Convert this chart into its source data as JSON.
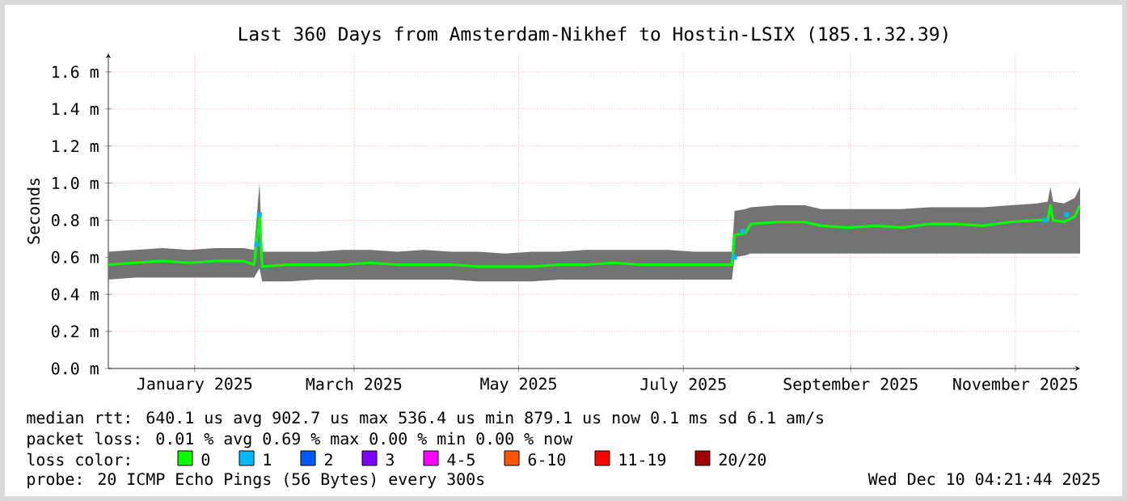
{
  "chart_data": {
    "type": "line",
    "title": "Last 360 Days from Amsterdam-Nikhef to Hostin-LSIX (185.1.32.39)",
    "ylabel": "Seconds",
    "legend_title": "loss color:",
    "xlim": [
      "2024-12-15",
      "2025-12-10"
    ],
    "xticks": [
      {
        "value": "2025-01-16",
        "label": "January 2025"
      },
      {
        "value": "2025-03-16",
        "label": "March 2025"
      },
      {
        "value": "2025-05-16",
        "label": "May 2025"
      },
      {
        "value": "2025-07-16",
        "label": "July 2025"
      },
      {
        "value": "2025-09-16",
        "label": "September 2025"
      },
      {
        "value": "2025-11-16",
        "label": "November 2025"
      }
    ],
    "ylim": [
      0,
      1.7
    ],
    "yticks": [
      {
        "value": 0,
        "label": "0.0 m"
      },
      {
        "value": 0.2,
        "label": "0.2 m"
      },
      {
        "value": 0.4,
        "label": "0.4 m"
      },
      {
        "value": 0.6,
        "label": "0.6 m"
      },
      {
        "value": 0.8,
        "label": "0.8 m"
      },
      {
        "value": 1.0,
        "label": "1.0 m"
      },
      {
        "value": 1.2,
        "label": "1.2 m"
      },
      {
        "value": 1.4,
        "label": "1.4 m"
      },
      {
        "value": 1.6,
        "label": "1.6 m"
      }
    ],
    "grid": true,
    "legend": "bottom",
    "x": [
      "2024-12-15",
      "2024-12-25",
      "2025-01-04",
      "2025-01-14",
      "2025-01-24",
      "2025-02-03",
      "2025-02-07",
      "2025-02-09",
      "2025-02-10",
      "2025-02-20",
      "2025-03-02",
      "2025-03-12",
      "2025-03-22",
      "2025-04-01",
      "2025-04-11",
      "2025-04-21",
      "2025-05-01",
      "2025-05-11",
      "2025-05-21",
      "2025-05-31",
      "2025-06-10",
      "2025-06-20",
      "2025-06-30",
      "2025-07-10",
      "2025-07-20",
      "2025-07-30",
      "2025-08-03",
      "2025-08-04",
      "2025-08-08",
      "2025-08-10",
      "2025-08-20",
      "2025-08-30",
      "2025-09-05",
      "2025-09-15",
      "2025-09-25",
      "2025-10-05",
      "2025-10-15",
      "2025-10-25",
      "2025-11-04",
      "2025-11-14",
      "2025-11-24",
      "2025-11-28",
      "2025-11-29",
      "2025-11-30",
      "2025-12-04",
      "2025-12-08",
      "2025-12-10"
    ],
    "series": [
      {
        "name": "0",
        "color": "#00ff00",
        "values": [
          0.56,
          0.57,
          0.58,
          0.57,
          0.58,
          0.58,
          0.56,
          0.82,
          0.55,
          0.56,
          0.56,
          0.56,
          0.57,
          0.56,
          0.56,
          0.56,
          0.55,
          0.55,
          0.55,
          0.56,
          0.56,
          0.57,
          0.56,
          0.56,
          0.56,
          0.56,
          0.56,
          0.72,
          0.73,
          0.78,
          0.79,
          0.79,
          0.77,
          0.76,
          0.77,
          0.76,
          0.78,
          0.78,
          0.77,
          0.79,
          0.8,
          0.8,
          0.88,
          0.8,
          0.79,
          0.82,
          0.88
        ],
        "lower": [
          0.48,
          0.49,
          0.49,
          0.49,
          0.49,
          0.49,
          0.49,
          0.54,
          0.47,
          0.47,
          0.48,
          0.48,
          0.48,
          0.48,
          0.48,
          0.48,
          0.47,
          0.47,
          0.47,
          0.48,
          0.48,
          0.48,
          0.48,
          0.48,
          0.48,
          0.48,
          0.48,
          0.6,
          0.61,
          0.62,
          0.62,
          0.62,
          0.62,
          0.62,
          0.62,
          0.62,
          0.62,
          0.62,
          0.62,
          0.62,
          0.62,
          0.62,
          0.62,
          0.62,
          0.62,
          0.62,
          0.62
        ],
        "upper": [
          0.63,
          0.64,
          0.65,
          0.64,
          0.65,
          0.65,
          0.64,
          1.0,
          0.63,
          0.63,
          0.63,
          0.64,
          0.64,
          0.63,
          0.64,
          0.63,
          0.63,
          0.62,
          0.63,
          0.63,
          0.64,
          0.64,
          0.64,
          0.64,
          0.63,
          0.63,
          0.63,
          0.85,
          0.86,
          0.87,
          0.88,
          0.88,
          0.86,
          0.86,
          0.86,
          0.86,
          0.87,
          0.87,
          0.87,
          0.88,
          0.89,
          0.9,
          0.98,
          0.9,
          0.89,
          0.92,
          0.98
        ]
      },
      {
        "name": "1",
        "color": "#00b8ff",
        "type": "scatter",
        "marker": "square",
        "x": [
          "2025-02-08",
          "2025-02-09",
          "2025-08-04",
          "2025-08-07",
          "2025-11-27",
          "2025-12-05"
        ],
        "values": [
          0.67,
          0.83,
          0.6,
          0.74,
          0.8,
          0.83
        ]
      },
      {
        "name": "2",
        "color": "#0059ff",
        "type": "scatter",
        "marker": "square",
        "values": [
          null,
          null,
          null,
          null,
          null,
          null,
          null,
          null,
          null,
          null,
          null,
          null,
          null,
          null,
          null,
          null,
          null,
          null,
          null,
          null,
          null,
          null,
          null,
          null,
          null,
          null,
          null,
          null,
          null,
          null,
          null,
          null,
          null,
          null,
          null,
          null,
          null,
          null,
          null,
          null,
          null,
          null,
          null,
          null,
          null,
          null,
          null
        ]
      },
      {
        "name": "3",
        "color": "#7e00ff",
        "type": "scatter",
        "marker": "square",
        "values": [
          null,
          null,
          null,
          null,
          null,
          null,
          null,
          null,
          null,
          null,
          null,
          null,
          null,
          null,
          null,
          null,
          null,
          null,
          null,
          null,
          null,
          null,
          null,
          null,
          null,
          null,
          null,
          null,
          null,
          null,
          null,
          null,
          null,
          null,
          null,
          null,
          null,
          null,
          null,
          null,
          null,
          null,
          null,
          null,
          null,
          null,
          null
        ]
      },
      {
        "name": "4-5",
        "color": "#ff00ff",
        "type": "scatter",
        "marker": "square",
        "values": [
          null,
          null,
          null,
          null,
          null,
          null,
          null,
          null,
          null,
          null,
          null,
          null,
          null,
          null,
          null,
          null,
          null,
          null,
          null,
          null,
          null,
          null,
          null,
          null,
          null,
          null,
          null,
          null,
          null,
          null,
          null,
          null,
          null,
          null,
          null,
          null,
          null,
          null,
          null,
          null,
          null,
          null,
          null,
          null,
          null,
          null,
          null
        ]
      },
      {
        "name": "6-10",
        "color": "#ff5500",
        "type": "scatter",
        "marker": "square",
        "values": [
          null,
          null,
          null,
          null,
          null,
          null,
          null,
          null,
          null,
          null,
          null,
          null,
          null,
          null,
          null,
          null,
          null,
          null,
          null,
          null,
          null,
          null,
          null,
          null,
          null,
          null,
          null,
          null,
          null,
          null,
          null,
          null,
          null,
          null,
          null,
          null,
          null,
          null,
          null,
          null,
          null,
          null,
          null,
          null,
          null,
          null,
          null
        ]
      },
      {
        "name": "11-19",
        "color": "#ff0000",
        "type": "scatter",
        "marker": "square",
        "values": [
          null,
          null,
          null,
          null,
          null,
          null,
          null,
          null,
          null,
          null,
          null,
          null,
          null,
          null,
          null,
          null,
          null,
          null,
          null,
          null,
          null,
          null,
          null,
          null,
          null,
          null,
          null,
          null,
          null,
          null,
          null,
          null,
          null,
          null,
          null,
          null,
          null,
          null,
          null,
          null,
          null,
          null,
          null,
          null,
          null,
          null,
          null
        ]
      },
      {
        "name": "20/20",
        "color": "#a10000",
        "type": "scatter",
        "marker": "square",
        "values": [
          null,
          null,
          null,
          null,
          null,
          null,
          null,
          null,
          null,
          null,
          null,
          null,
          null,
          null,
          null,
          null,
          null,
          null,
          null,
          null,
          null,
          null,
          null,
          null,
          null,
          null,
          null,
          null,
          null,
          null,
          null,
          null,
          null,
          null,
          null,
          null,
          null,
          null,
          null,
          null,
          null,
          null,
          null,
          null,
          null,
          null,
          null
        ]
      }
    ],
    "annotations": [
      "median rtt:  640.1 us avg  902.7 us max  536.4 us min  879.1 us now  0.1 ms sd  6.1  am/s",
      "packet loss: 0.01 % avg  0.69 % max  0.00 % min  0.00 % now",
      "probe:  20 ICMP Echo Pings (56 Bytes) every 300s",
      "Wed Dec 10 04:21:44 2025"
    ]
  }
}
